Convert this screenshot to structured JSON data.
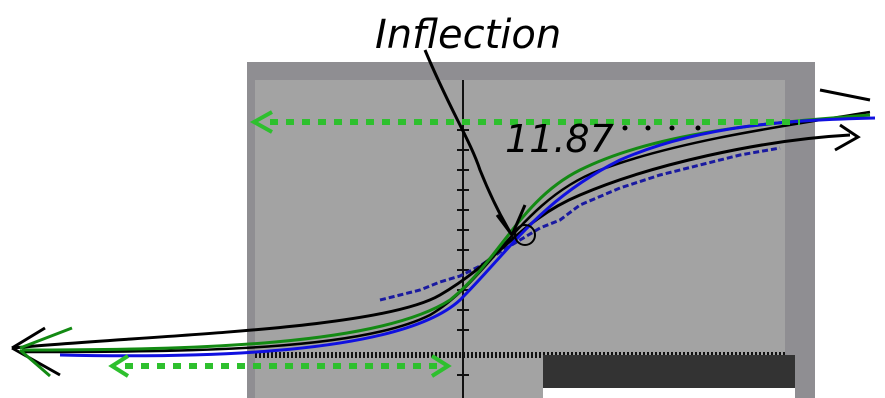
{
  "annotations": {
    "label": "Inflection",
    "value": "11.87"
  }
}
